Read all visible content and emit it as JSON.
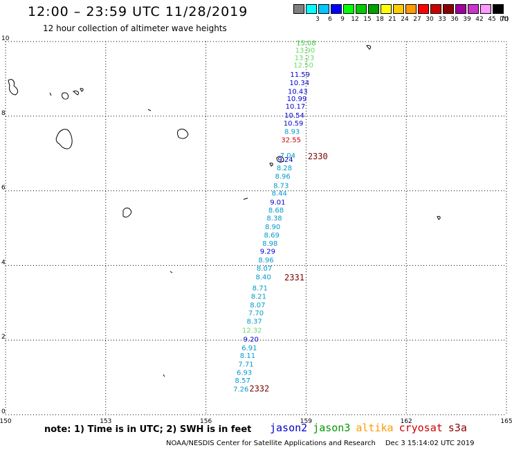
{
  "header": {
    "title": "12:00 – 23:59 UTC 11/28/2019",
    "subtitle": "12 hour collection of altimeter wave heights"
  },
  "legend": {
    "unit": "(ft)",
    "items": [
      {
        "label": "",
        "color": "#808080"
      },
      {
        "label": "3",
        "color": "#00ffff"
      },
      {
        "label": "6",
        "color": "#00c8ff"
      },
      {
        "label": "9",
        "color": "#0000ff"
      },
      {
        "label": "12",
        "color": "#00ff00"
      },
      {
        "label": "15",
        "color": "#00cc00"
      },
      {
        "label": "18",
        "color": "#00a000"
      },
      {
        "label": "21",
        "color": "#ffff00"
      },
      {
        "label": "24",
        "color": "#ffcc00"
      },
      {
        "label": "27",
        "color": "#ff9900"
      },
      {
        "label": "30",
        "color": "#ff0000"
      },
      {
        "label": "33",
        "color": "#cc0000"
      },
      {
        "label": "36",
        "color": "#8b0000"
      },
      {
        "label": "39",
        "color": "#a000a0"
      },
      {
        "label": "42",
        "color": "#cc33cc"
      },
      {
        "label": "45",
        "color": "#ff99ff"
      },
      {
        "label": "70",
        "color": "#000000"
      }
    ]
  },
  "axes": {
    "x_ticks": [
      "150",
      "153",
      "156",
      "159",
      "162",
      "165"
    ],
    "y_ticks": [
      "0",
      "2",
      "4",
      "6",
      "8",
      "10"
    ],
    "xlim": [
      150,
      165
    ],
    "ylim": [
      0,
      10
    ]
  },
  "observations": [
    {
      "v": "15.08",
      "lon": 159.0,
      "lat": 9.9,
      "c": "#33cc33"
    },
    {
      "v": "13.90",
      "lon": 158.97,
      "lat": 9.7,
      "c": "#66dd66"
    },
    {
      "v": "13.23",
      "lon": 158.95,
      "lat": 9.5,
      "c": "#66dd66"
    },
    {
      "v": "12.50",
      "lon": 158.92,
      "lat": 9.3,
      "c": "#66dd66"
    },
    {
      "v": "11.59",
      "lon": 158.82,
      "lat": 9.05,
      "c": "#0000cc"
    },
    {
      "v": "10.34",
      "lon": 158.8,
      "lat": 8.83,
      "c": "#0000cc"
    },
    {
      "v": "10.43",
      "lon": 158.75,
      "lat": 8.6,
      "c": "#0000cc"
    },
    {
      "v": "10.99",
      "lon": 158.72,
      "lat": 8.4,
      "c": "#0000cc"
    },
    {
      "v": "10.17",
      "lon": 158.68,
      "lat": 8.2,
      "c": "#0000cc"
    },
    {
      "v": "10.54",
      "lon": 158.65,
      "lat": 7.96,
      "c": "#0000cc"
    },
    {
      "v": "10.59",
      "lon": 158.62,
      "lat": 7.75,
      "c": "#0000cc"
    },
    {
      "v": "8.93",
      "lon": 158.58,
      "lat": 7.52,
      "c": "#0099cc"
    },
    {
      "v": "32.55",
      "lon": 158.55,
      "lat": 7.3,
      "c": "#cc0000"
    },
    {
      "v": "7.04",
      "lon": 158.45,
      "lat": 6.88,
      "c": "#0099cc"
    },
    {
      "v": "9.24",
      "lon": 158.38,
      "lat": 6.77,
      "c": "#0000cc"
    },
    {
      "v": "8.28",
      "lon": 158.35,
      "lat": 6.55,
      "c": "#0099cc"
    },
    {
      "v": "8.96",
      "lon": 158.3,
      "lat": 6.33,
      "c": "#0099cc"
    },
    {
      "v": "8.73",
      "lon": 158.25,
      "lat": 6.08,
      "c": "#0099cc"
    },
    {
      "v": "8.44",
      "lon": 158.2,
      "lat": 5.87,
      "c": "#0099cc"
    },
    {
      "v": "9.01",
      "lon": 158.15,
      "lat": 5.63,
      "c": "#0000cc"
    },
    {
      "v": "8.68",
      "lon": 158.1,
      "lat": 5.42,
      "c": "#0099cc"
    },
    {
      "v": "8.38",
      "lon": 158.05,
      "lat": 5.2,
      "c": "#0099cc"
    },
    {
      "v": "8.90",
      "lon": 158.0,
      "lat": 4.97,
      "c": "#0099cc"
    },
    {
      "v": "8.69",
      "lon": 157.97,
      "lat": 4.75,
      "c": "#0099cc"
    },
    {
      "v": "8.98",
      "lon": 157.92,
      "lat": 4.53,
      "c": "#0099cc"
    },
    {
      "v": "9.29",
      "lon": 157.85,
      "lat": 4.31,
      "c": "#0000cc"
    },
    {
      "v": "8.96",
      "lon": 157.8,
      "lat": 4.08,
      "c": "#0099cc"
    },
    {
      "v": "8.07",
      "lon": 157.75,
      "lat": 3.86,
      "c": "#0099cc"
    },
    {
      "v": "8.40",
      "lon": 157.72,
      "lat": 3.63,
      "c": "#0099cc"
    },
    {
      "v": "8.71",
      "lon": 157.62,
      "lat": 3.33,
      "c": "#0099cc"
    },
    {
      "v": "8.21",
      "lon": 157.58,
      "lat": 3.11,
      "c": "#0099cc"
    },
    {
      "v": "8.07",
      "lon": 157.55,
      "lat": 2.88,
      "c": "#0099cc"
    },
    {
      "v": "7.70",
      "lon": 157.5,
      "lat": 2.66,
      "c": "#0099cc"
    },
    {
      "v": "8.37",
      "lon": 157.45,
      "lat": 2.44,
      "c": "#0099cc"
    },
    {
      "v": "12.32",
      "lon": 157.38,
      "lat": 2.2,
      "c": "#66dd66"
    },
    {
      "v": "9.20",
      "lon": 157.35,
      "lat": 1.96,
      "c": "#0000cc"
    },
    {
      "v": "6.91",
      "lon": 157.3,
      "lat": 1.73,
      "c": "#0099cc"
    },
    {
      "v": "8.11",
      "lon": 157.25,
      "lat": 1.52,
      "c": "#0099cc"
    },
    {
      "v": "7.71",
      "lon": 157.2,
      "lat": 1.29,
      "c": "#0099cc"
    },
    {
      "v": "6.93",
      "lon": 157.15,
      "lat": 1.07,
      "c": "#0099cc"
    },
    {
      "v": "8.57",
      "lon": 157.1,
      "lat": 0.85,
      "c": "#0099cc"
    },
    {
      "v": "7.26",
      "lon": 157.05,
      "lat": 0.62,
      "c": "#0099cc"
    }
  ],
  "passes": [
    {
      "label": "2330",
      "lon": 159.05,
      "lat": 6.85
    },
    {
      "label": "2331",
      "lon": 158.35,
      "lat": 3.6
    },
    {
      "label": "2332",
      "lon": 157.3,
      "lat": 0.62
    }
  ],
  "footer": {
    "note": "note:  1) Time is in UTC;  2) SWH is in feet",
    "satellites": [
      {
        "name": "jason2",
        "color": "#0000cc"
      },
      {
        "name": "jason3",
        "color": "#009900"
      },
      {
        "name": "altika",
        "color": "#ff9900"
      },
      {
        "name": "cryosat",
        "color": "#cc0000"
      },
      {
        "name": "s3a",
        "color": "#8b0000"
      }
    ],
    "credit": "NOAA/NESDIS Center for Satellite Applications and Research",
    "timestamp": "Dec  3 15:14:02 UTC 2019"
  }
}
